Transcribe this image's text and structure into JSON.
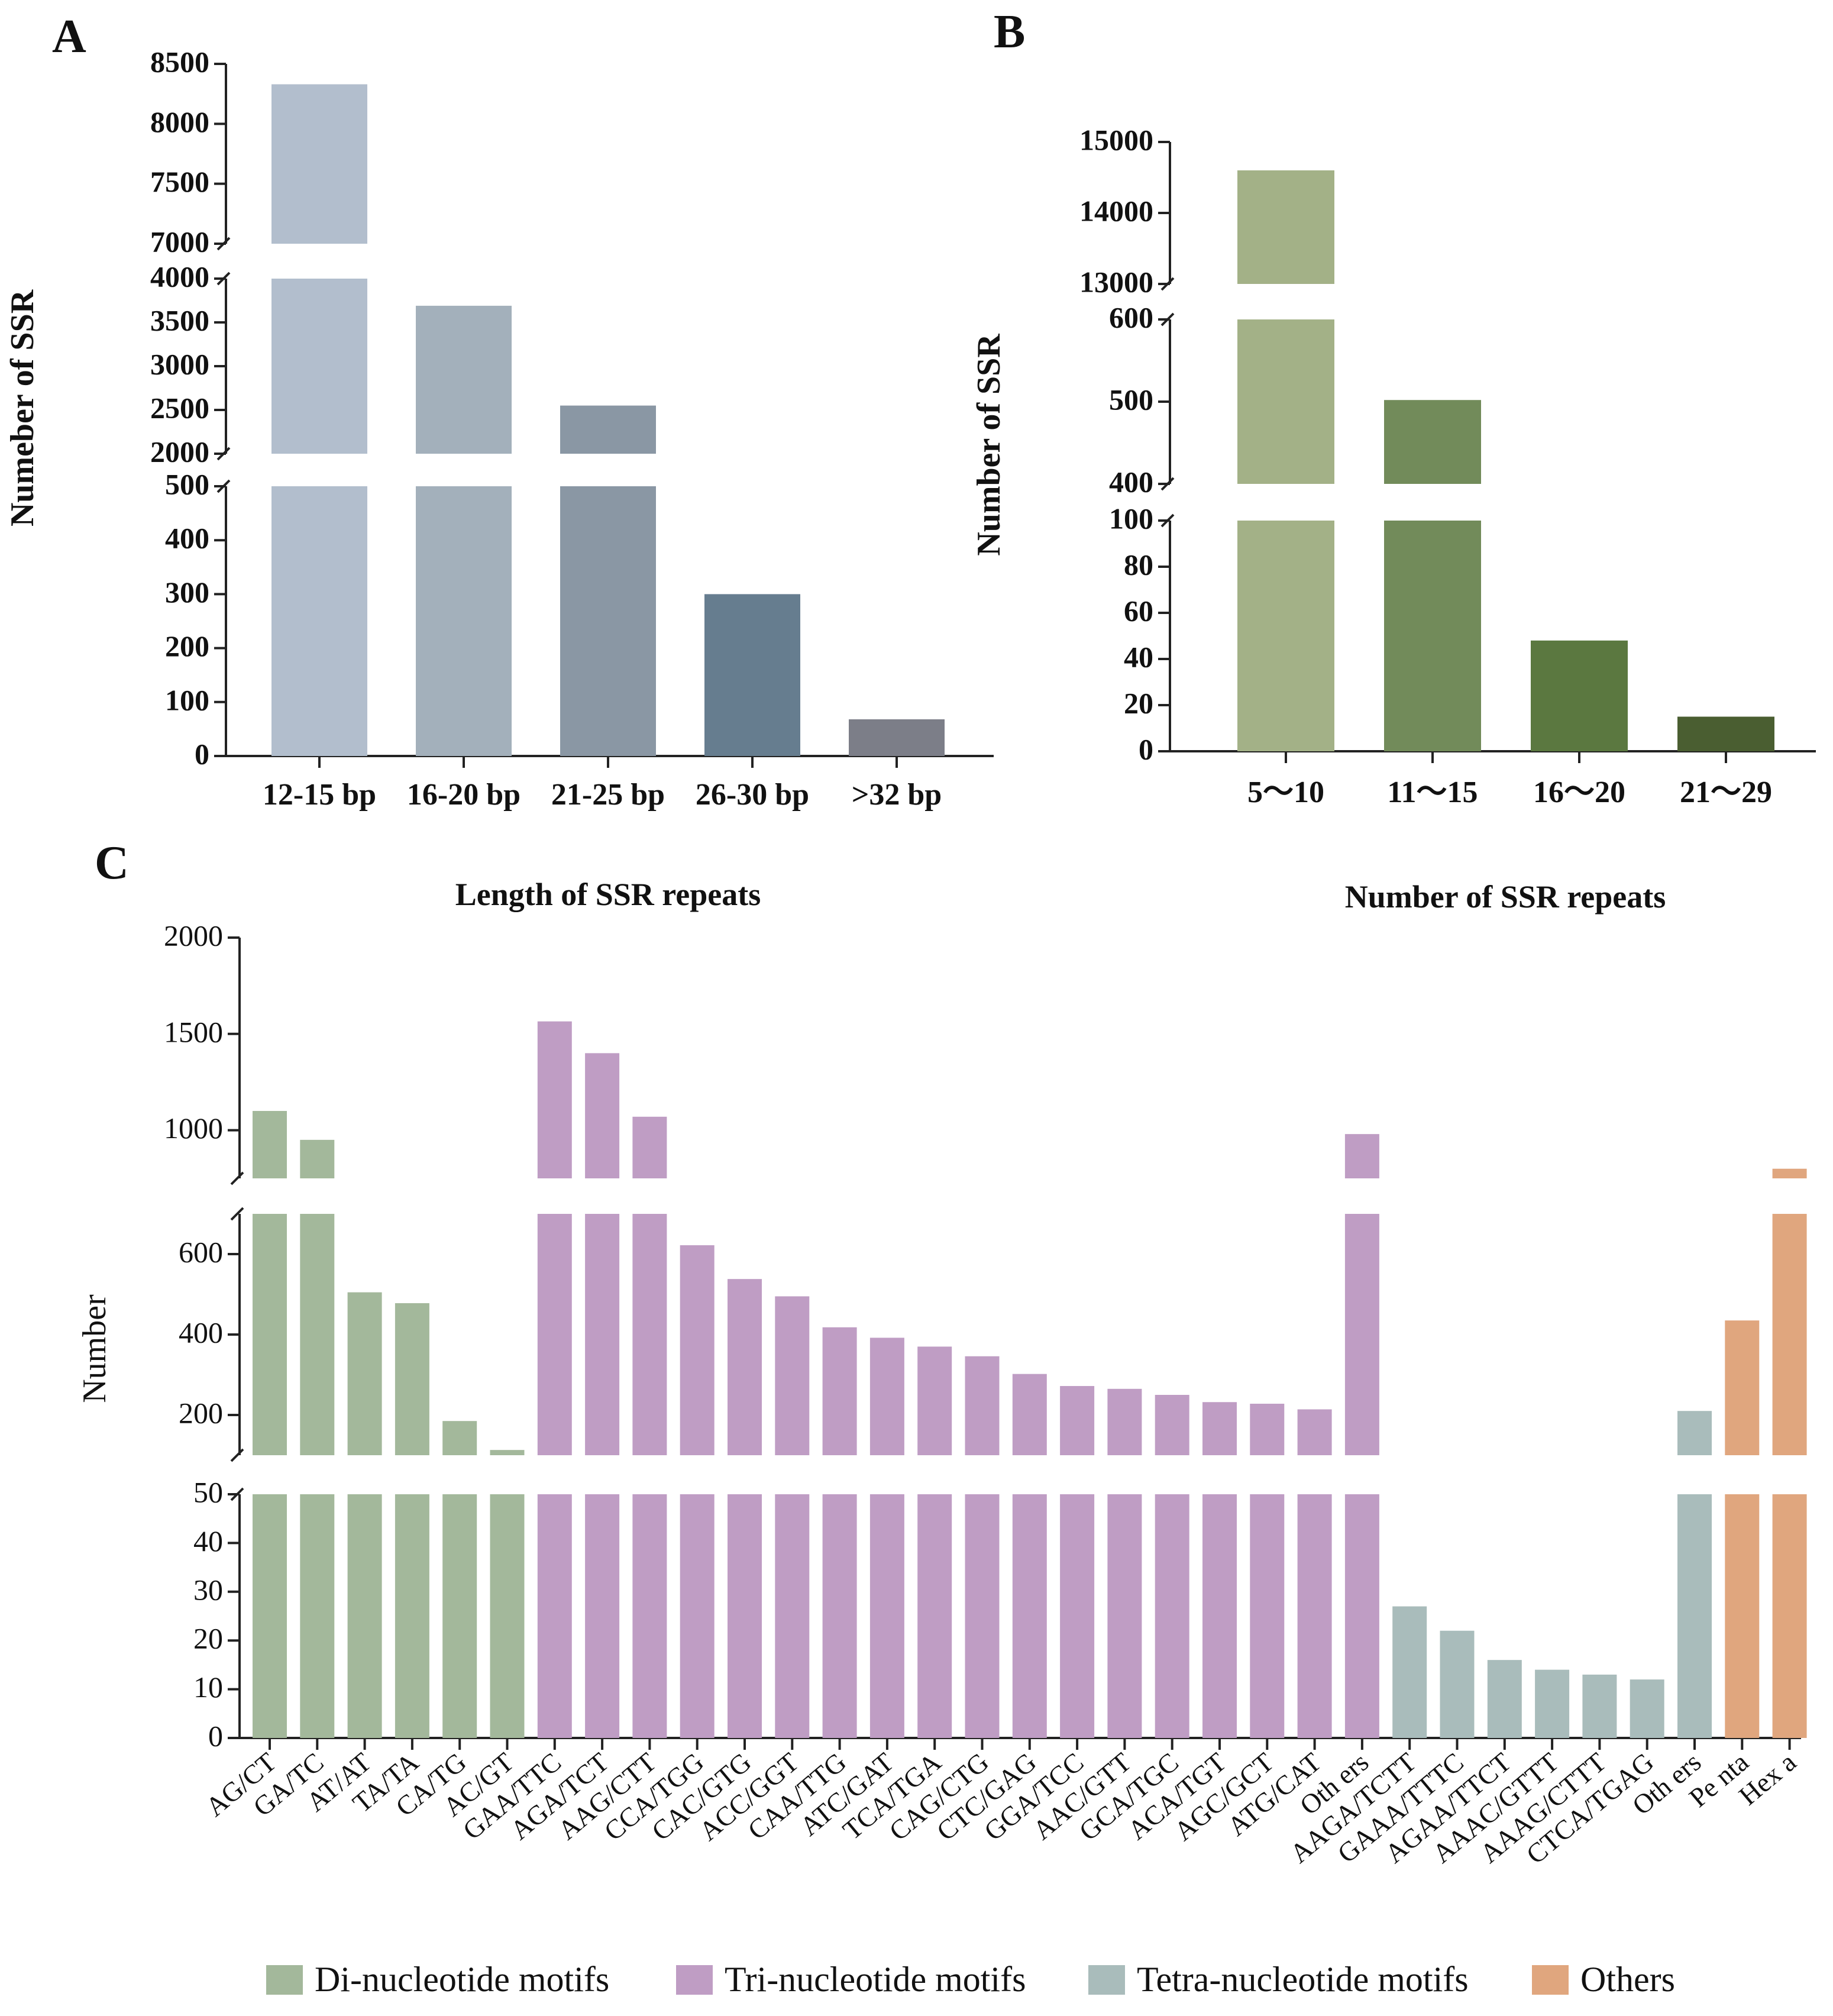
{
  "chart_data": [
    {
      "panel": "A",
      "type": "bar",
      "title": "",
      "xlabel": "",
      "ylabel": "Numeber of SSR",
      "categories": [
        "12-15 bp",
        "16-20 bp",
        "21-25 bp",
        "26-30 bp",
        ">32 bp"
      ],
      "values": [
        8330,
        3690,
        2550,
        300,
        68
      ],
      "colors": [
        "#b2becd",
        "#a3b0bb",
        "#8a97a4",
        "#667d8f",
        "#7c7e88"
      ],
      "axis_segments": [
        {
          "range": [
            0,
            500
          ],
          "ticks": [
            0,
            100,
            200,
            300,
            400,
            500
          ]
        },
        {
          "range": [
            2000,
            4000
          ],
          "ticks": [
            2000,
            2500,
            3000,
            3500,
            4000
          ]
        },
        {
          "range": [
            7000,
            8500
          ],
          "ticks": [
            7000,
            7500,
            8000,
            8500
          ]
        }
      ]
    },
    {
      "panel": "B",
      "type": "bar",
      "title": "",
      "xlabel": "",
      "ylabel": "Number of SSR",
      "categories": [
        "5～10",
        "11～15",
        "16～20",
        "21～29"
      ],
      "values": [
        14600,
        502,
        48,
        15
      ],
      "colors": [
        "#a3b187",
        "#728b5a",
        "#5b7840",
        "#4a5e31"
      ],
      "axis_segments": [
        {
          "range": [
            0,
            100
          ],
          "ticks": [
            0,
            20,
            40,
            60,
            80,
            100
          ]
        },
        {
          "range": [
            400,
            600
          ],
          "ticks": [
            400,
            500,
            600
          ]
        },
        {
          "range": [
            13000,
            15000
          ],
          "ticks": [
            13000,
            14000,
            15000
          ]
        }
      ]
    },
    {
      "panel": "C",
      "type": "bar",
      "subtitles": [
        "Length of SSR repeats",
        "Number of SSR repeats"
      ],
      "xlabel": "",
      "ylabel": "Number",
      "categories": [
        "AG/CT",
        "GA/TC",
        "AT/AT",
        "TA/TA",
        "CA/TG",
        "AC/GT",
        "GAA/TTC",
        "AGA/TCT",
        "AAG/CTT",
        "CCA/TGG",
        "CAC/GTG",
        "ACC/GGT",
        "CAA/TTG",
        "ATC/GAT",
        "TCA/TGA",
        "CAG/CTG",
        "CTC/GAG",
        "GGA/TCC",
        "AAC/GTT",
        "GCA/TGC",
        "ACA/TGT",
        "AGC/GCT",
        "ATG/CAT",
        "Oth ers",
        "AAGA/TCTT",
        "GAAA/TTTC",
        "AGAA/TTCT",
        "AAAC/GTTT",
        "AAAG/CTTT",
        "CTCA/TGAG",
        "Oth ers",
        "Pe nta",
        "Hex a"
      ],
      "values": [
        1100,
        950,
        505,
        478,
        185,
        113,
        1565,
        1400,
        1070,
        622,
        538,
        495,
        418,
        392,
        370,
        346,
        302,
        272,
        265,
        250,
        232,
        228,
        214,
        980,
        27,
        22,
        16,
        14,
        13,
        12,
        210,
        435,
        800
      ],
      "groups": [
        0,
        0,
        0,
        0,
        0,
        0,
        1,
        1,
        1,
        1,
        1,
        1,
        1,
        1,
        1,
        1,
        1,
        1,
        1,
        1,
        1,
        1,
        1,
        1,
        2,
        2,
        2,
        2,
        2,
        2,
        2,
        3,
        3
      ],
      "axis_segments": [
        {
          "range": [
            0,
            50
          ],
          "ticks": [
            0,
            10,
            20,
            30,
            40,
            50
          ]
        },
        {
          "range": [
            100,
            700
          ],
          "ticks": [
            200,
            400,
            600
          ]
        },
        {
          "range": [
            750,
            2000
          ],
          "ticks": [
            1000,
            1500,
            2000
          ]
        }
      ],
      "legend": [
        {
          "label": "Di-nucleotide motifs",
          "color": "#a3b89b"
        },
        {
          "label": "Tri-nucleotide motifs",
          "color": "#bf9dc4"
        },
        {
          "label": "Tetra-nucleotide motifs",
          "color": "#a9bcbb"
        },
        {
          "label": "Others",
          "color": "#e0a67e"
        }
      ],
      "legend_position": "bottom"
    }
  ]
}
